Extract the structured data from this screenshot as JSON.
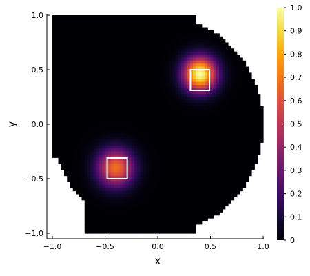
{
  "chart_data": {
    "type": "heatmap",
    "colormap": "inferno",
    "xlabel": "x",
    "ylabel": "y",
    "xlim": [
      -1.0,
      1.0
    ],
    "ylim": [
      -1.0,
      1.0
    ],
    "x_ticks": [
      "−1.0",
      "−0.5",
      "0.0",
      "0.5",
      "1.0"
    ],
    "y_ticks": [
      "−1.0",
      "−0.5",
      "0.0",
      "0.5",
      "1.0"
    ],
    "x_tick_values": [
      -1.0,
      -0.5,
      0.0,
      0.5,
      1.0
    ],
    "y_tick_values": [
      -1.0,
      -0.5,
      0.0,
      0.5,
      1.0
    ],
    "colorbar": {
      "range": [
        0,
        1
      ],
      "ticks": [
        "0",
        "0.1",
        "0.2",
        "0.3",
        "0.4",
        "0.5",
        "0.6",
        "0.7",
        "0.8",
        "0.9",
        "1.0"
      ],
      "tick_values": [
        0,
        0.1,
        0.2,
        0.3,
        0.4,
        0.5,
        0.6,
        0.7,
        0.8,
        0.9,
        1.0
      ]
    },
    "domain": "disk of radius 1 centered at origin",
    "peaks": [
      {
        "x": 0.4,
        "y": 0.46,
        "value": 1.0
      },
      {
        "x": -0.4,
        "y": -0.4,
        "value": 0.68
      }
    ],
    "boxes": [
      {
        "x_range": [
          0.31,
          0.49
        ],
        "y_range": [
          0.31,
          0.5
        ]
      },
      {
        "x_range": [
          -0.48,
          -0.29
        ],
        "y_range": [
          -0.5,
          -0.31
        ]
      }
    ],
    "grid": false,
    "legend": "none"
  }
}
